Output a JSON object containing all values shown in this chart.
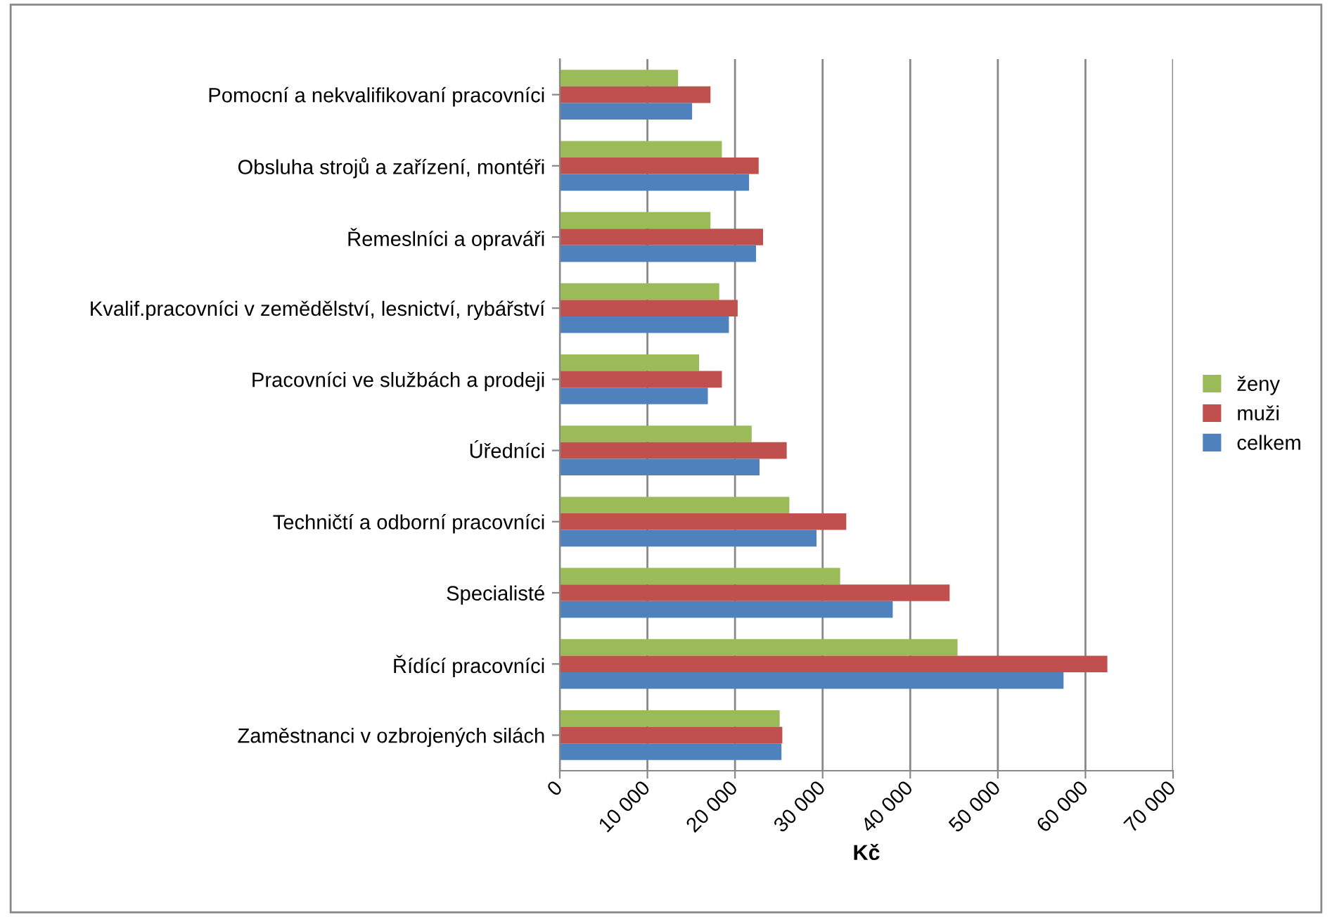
{
  "chart_data": {
    "type": "bar",
    "orientation": "horizontal",
    "xlabel": "Kč",
    "categories": [
      "Pomocní a nekvalifikovaní pracovníci",
      "Obsluha strojů a zařízení, montéři",
      "Řemeslníci a opraváři",
      "Kvalif.pracovníci v zemědělství, lesnictví, rybářství",
      "Pracovníci ve službách a prodeji",
      "Úředníci",
      "Techničtí a odborní pracovníci",
      "Specialisté",
      "Řídící pracovníci",
      "Zaměstnanci v ozbrojených silách"
    ],
    "series": [
      {
        "name": "ženy",
        "color": "#9bbb59",
        "values": [
          13500,
          18500,
          17200,
          18200,
          15900,
          21900,
          26200,
          32000,
          45400,
          25100
        ]
      },
      {
        "name": "muži",
        "color": "#c0504d",
        "values": [
          17200,
          22700,
          23200,
          20300,
          18500,
          25900,
          32700,
          44500,
          62500,
          25400
        ]
      },
      {
        "name": "celkem",
        "color": "#4f81bd",
        "values": [
          15100,
          21600,
          22400,
          19300,
          16900,
          22800,
          29300,
          38000,
          57500,
          25300
        ]
      }
    ],
    "xlim": [
      0,
      70000
    ],
    "xticks": [
      0,
      {
        "value": 10000,
        "label": "10 000"
      },
      {
        "value": 20000,
        "label": "20 000"
      },
      {
        "value": 30000,
        "label": "30 000"
      },
      {
        "value": 40000,
        "label": "40 000"
      },
      {
        "value": 50000,
        "label": "50 000"
      },
      {
        "value": 60000,
        "label": "60 000"
      },
      {
        "value": 70000,
        "label": "70 000"
      }
    ],
    "grid": "x",
    "legend": "right"
  }
}
